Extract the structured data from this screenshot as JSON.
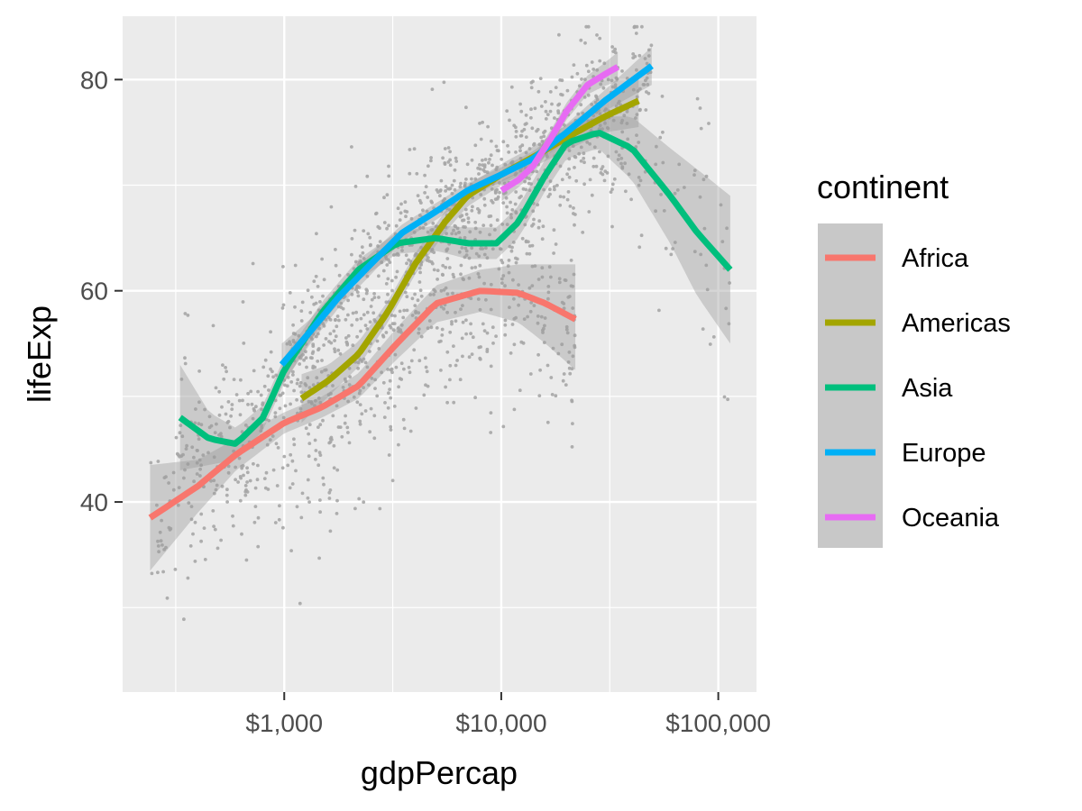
{
  "chart_data": {
    "type": "scatter",
    "xlabel": "gdpPercap",
    "ylabel": "lifeExp",
    "x_scale": "log10",
    "xlim": [
      180,
      150000
    ],
    "ylim": [
      22,
      86
    ],
    "x_ticks": [
      1000,
      10000,
      100000
    ],
    "x_tick_labels": [
      "$1,000",
      "$10,000",
      "$100,000"
    ],
    "y_ticks": [
      40,
      60,
      80
    ],
    "y_tick_labels": [
      "40",
      "60",
      "80"
    ],
    "grid": true,
    "legend": {
      "title": "continent",
      "placement": "right"
    },
    "points_color": "#a6a6a6",
    "band_color": "#999999",
    "series": [
      {
        "name": "Africa",
        "color": "#F8766D",
        "x_range": [
          241,
          21951
        ],
        "curve": [
          [
            241,
            38.5
          ],
          [
            400,
            41.5
          ],
          [
            600,
            44.5
          ],
          [
            1000,
            47.5
          ],
          [
            1500,
            49.0
          ],
          [
            2200,
            51.0
          ],
          [
            3300,
            55.0
          ],
          [
            5000,
            58.8
          ],
          [
            8000,
            60.0
          ],
          [
            12000,
            59.8
          ],
          [
            16000,
            58.8
          ],
          [
            21951,
            57.3
          ]
        ],
        "band": [
          [
            241,
            33.5,
            43.5
          ],
          [
            400,
            39.0,
            44.0
          ],
          [
            600,
            43.0,
            46.0
          ],
          [
            1000,
            46.5,
            48.5
          ],
          [
            1500,
            48.0,
            50.0
          ],
          [
            2200,
            49.8,
            52.2
          ],
          [
            3300,
            53.5,
            56.5
          ],
          [
            5000,
            57.0,
            60.5
          ],
          [
            8000,
            58.0,
            62.0
          ],
          [
            12000,
            57.0,
            62.5
          ],
          [
            16000,
            55.0,
            62.5
          ],
          [
            21951,
            52.5,
            62.5
          ]
        ]
      },
      {
        "name": "Americas",
        "color": "#A3A500",
        "x_range": [
          1202,
          42952
        ],
        "curve": [
          [
            1202,
            49.8
          ],
          [
            1600,
            51.5
          ],
          [
            2200,
            54.0
          ],
          [
            3000,
            58.0
          ],
          [
            4000,
            62.5
          ],
          [
            5500,
            66.5
          ],
          [
            7000,
            69.0
          ],
          [
            10000,
            71.0
          ],
          [
            15000,
            73.0
          ],
          [
            20000,
            74.5
          ],
          [
            30000,
            76.5
          ],
          [
            42952,
            78.0
          ]
        ],
        "band": [
          [
            1202,
            47.5,
            52.1
          ],
          [
            1600,
            50.0,
            53.0
          ],
          [
            2200,
            52.8,
            55.2
          ],
          [
            3000,
            57.0,
            59.0
          ],
          [
            4000,
            61.5,
            63.5
          ],
          [
            5500,
            65.5,
            67.5
          ],
          [
            7000,
            68.0,
            70.0
          ],
          [
            10000,
            70.0,
            72.0
          ],
          [
            15000,
            72.0,
            74.0
          ],
          [
            20000,
            73.3,
            75.7
          ],
          [
            30000,
            75.0,
            78.0
          ],
          [
            42952,
            75.5,
            80.5
          ]
        ]
      },
      {
        "name": "Asia",
        "color": "#00BF7D",
        "x_range": [
          331,
          113523
        ],
        "curve": [
          [
            331,
            48.0
          ],
          [
            450,
            46.0
          ],
          [
            600,
            45.5
          ],
          [
            800,
            48.0
          ],
          [
            1000,
            52.5
          ],
          [
            1500,
            58.0
          ],
          [
            2200,
            62.0
          ],
          [
            3300,
            64.5
          ],
          [
            5000,
            65.0
          ],
          [
            7000,
            64.5
          ],
          [
            9500,
            64.5
          ],
          [
            12000,
            66.5
          ],
          [
            16000,
            71.0
          ],
          [
            20000,
            74.0
          ],
          [
            28000,
            75.0
          ],
          [
            40000,
            73.5
          ],
          [
            60000,
            69.0
          ],
          [
            80000,
            65.5
          ],
          [
            113523,
            62.0
          ]
        ],
        "band": [
          [
            331,
            43.0,
            53.0
          ],
          [
            450,
            43.5,
            48.5
          ],
          [
            600,
            44.0,
            47.0
          ],
          [
            800,
            46.8,
            49.2
          ],
          [
            1000,
            51.3,
            53.7
          ],
          [
            1500,
            57.0,
            59.0
          ],
          [
            2200,
            61.0,
            63.0
          ],
          [
            3300,
            63.5,
            65.5
          ],
          [
            5000,
            63.8,
            66.2
          ],
          [
            7000,
            63.0,
            66.0
          ],
          [
            9500,
            63.0,
            66.0
          ],
          [
            12000,
            65.0,
            68.0
          ],
          [
            16000,
            69.5,
            72.5
          ],
          [
            20000,
            72.5,
            75.5
          ],
          [
            28000,
            73.5,
            76.5
          ],
          [
            40000,
            70.5,
            76.5
          ],
          [
            60000,
            64.5,
            73.5
          ],
          [
            80000,
            59.5,
            71.5
          ],
          [
            113523,
            55.0,
            69.0
          ]
        ]
      },
      {
        "name": "Europe",
        "color": "#00B0F6",
        "x_range": [
          974,
          49357
        ],
        "curve": [
          [
            974,
            53.0
          ],
          [
            1300,
            56.0
          ],
          [
            1800,
            59.5
          ],
          [
            2500,
            62.5
          ],
          [
            3500,
            65.5
          ],
          [
            5000,
            67.5
          ],
          [
            7000,
            69.5
          ],
          [
            10000,
            71.0
          ],
          [
            14000,
            72.5
          ],
          [
            20000,
            75.0
          ],
          [
            30000,
            78.0
          ],
          [
            49357,
            81.3
          ]
        ],
        "band": [
          [
            974,
            51.0,
            55.0
          ],
          [
            1300,
            54.8,
            57.2
          ],
          [
            1800,
            58.5,
            60.5
          ],
          [
            2500,
            61.5,
            63.5
          ],
          [
            3500,
            64.7,
            66.3
          ],
          [
            5000,
            66.7,
            68.3
          ],
          [
            7000,
            68.8,
            70.2
          ],
          [
            10000,
            70.3,
            71.7
          ],
          [
            14000,
            71.8,
            73.2
          ],
          [
            20000,
            74.2,
            75.8
          ],
          [
            30000,
            77.0,
            79.0
          ],
          [
            49357,
            79.5,
            83.1
          ]
        ]
      },
      {
        "name": "Oceania",
        "color": "#E76BF3",
        "x_range": [
          10040,
          34435
        ],
        "curve": [
          [
            10040,
            69.5
          ],
          [
            12000,
            70.5
          ],
          [
            14000,
            71.8
          ],
          [
            17000,
            74.5
          ],
          [
            20000,
            77.0
          ],
          [
            25000,
            79.5
          ],
          [
            30000,
            80.5
          ],
          [
            34435,
            81.2
          ]
        ],
        "band": [
          [
            10040,
            68.5,
            70.5
          ],
          [
            12000,
            69.8,
            71.2
          ],
          [
            14000,
            71.0,
            72.6
          ],
          [
            17000,
            73.7,
            75.3
          ],
          [
            20000,
            76.2,
            77.8
          ],
          [
            25000,
            78.6,
            80.4
          ],
          [
            30000,
            79.4,
            81.6
          ],
          [
            34435,
            79.8,
            82.6
          ]
        ]
      }
    ]
  }
}
